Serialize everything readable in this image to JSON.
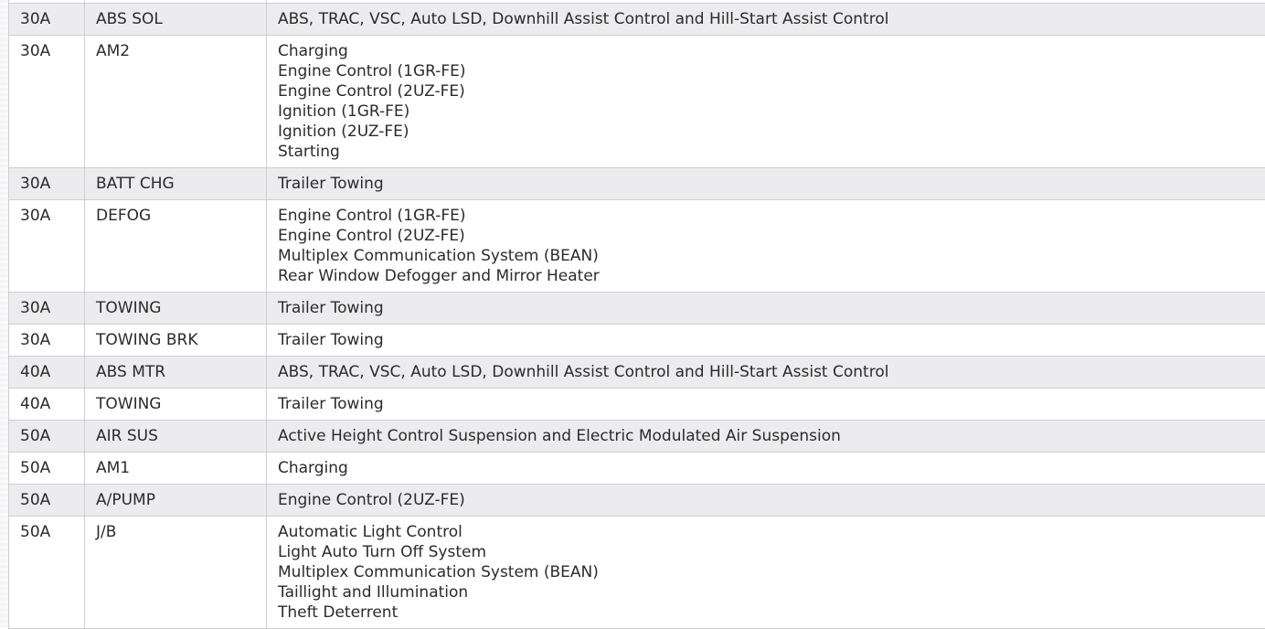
{
  "rows": [
    {
      "amp": "30A",
      "name": "ABS SOL",
      "circuits": [
        "ABS, TRAC, VSC, Auto LSD, Downhill Assist Control and Hill-Start Assist Control"
      ]
    },
    {
      "amp": "30A",
      "name": "AM2",
      "circuits": [
        "Charging",
        "Engine Control (1GR-FE)",
        "Engine Control (2UZ-FE)",
        "Ignition (1GR-FE)",
        "Ignition (2UZ-FE)",
        "Starting"
      ]
    },
    {
      "amp": "30A",
      "name": "BATT CHG",
      "circuits": [
        "Trailer Towing"
      ]
    },
    {
      "amp": "30A",
      "name": "DEFOG",
      "circuits": [
        "Engine Control (1GR-FE)",
        "Engine Control (2UZ-FE)",
        "Multiplex Communication System (BEAN)",
        "Rear Window Defogger and Mirror Heater"
      ]
    },
    {
      "amp": "30A",
      "name": "TOWING",
      "circuits": [
        "Trailer Towing"
      ]
    },
    {
      "amp": "30A",
      "name": "TOWING BRK",
      "circuits": [
        "Trailer Towing"
      ]
    },
    {
      "amp": "40A",
      "name": "ABS MTR",
      "circuits": [
        "ABS, TRAC, VSC, Auto LSD, Downhill Assist Control and Hill-Start Assist Control"
      ]
    },
    {
      "amp": "40A",
      "name": "TOWING",
      "circuits": [
        "Trailer Towing"
      ]
    },
    {
      "amp": "50A",
      "name": "AIR SUS",
      "circuits": [
        "Active Height Control Suspension and Electric Modulated Air Suspension"
      ]
    },
    {
      "amp": "50A",
      "name": "AM1",
      "circuits": [
        "Charging"
      ]
    },
    {
      "amp": "50A",
      "name": "A/PUMP",
      "circuits": [
        "Engine Control (2UZ-FE)"
      ]
    },
    {
      "amp": "50A",
      "name": "J/B",
      "circuits": [
        "Automatic Light Control",
        "Light Auto Turn Off System",
        "Multiplex Communication System (BEAN)",
        "Taillight and Illumination",
        "Theft Deterrent"
      ]
    }
  ]
}
